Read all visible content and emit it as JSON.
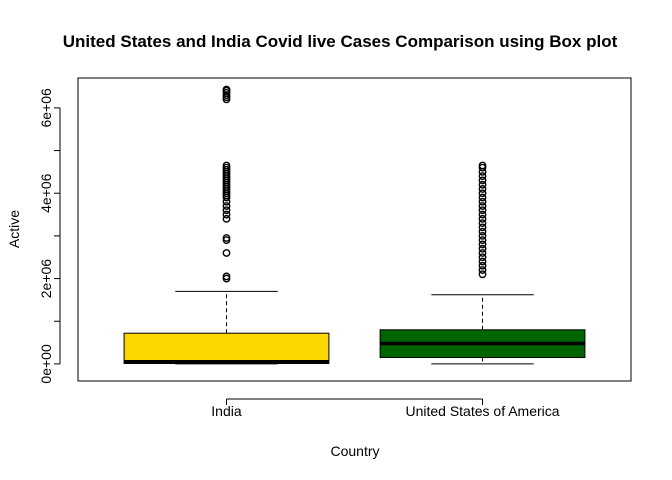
{
  "chart_data": {
    "type": "box",
    "title": "United States and India Covid live Cases Comparison using Box plot",
    "xlabel": "Country",
    "ylabel": "Active",
    "ylim": [
      -400000,
      6700000
    ],
    "yticks": [
      {
        "value": 0,
        "label": "0e+00"
      },
      {
        "value": 2000000,
        "label": "2e+06"
      },
      {
        "value": 4000000,
        "label": "4e+06"
      },
      {
        "value": 6000000,
        "label": "6e+06"
      }
    ],
    "grid": false,
    "legend": "none",
    "categories": [
      "India",
      "United States of America"
    ],
    "boxes": [
      {
        "name": "India",
        "color": "#FFD700",
        "whisker_low": 0,
        "q1": 10000,
        "median": 50000,
        "q3": 720000,
        "whisker_high": 1700000,
        "outliers": [
          2000000,
          2050000,
          2600000,
          2900000,
          2950000,
          3400000,
          3500000,
          3600000,
          3700000,
          3800000,
          3900000,
          3950000,
          4000000,
          4050000,
          4100000,
          4150000,
          4200000,
          4250000,
          4300000,
          4350000,
          4400000,
          4450000,
          4500000,
          4550000,
          4600000,
          4650000,
          6200000,
          6250000,
          6300000,
          6350000,
          6400000,
          6430000
        ]
      },
      {
        "name": "United States of America",
        "color": "#006400",
        "whisker_low": 0,
        "q1": 150000,
        "median": 480000,
        "q3": 800000,
        "whisker_high": 1620000,
        "outliers": [
          2100000,
          2200000,
          2300000,
          2400000,
          2500000,
          2600000,
          2700000,
          2800000,
          2900000,
          3000000,
          3100000,
          3200000,
          3300000,
          3400000,
          3500000,
          3600000,
          3700000,
          3800000,
          3900000,
          4000000,
          4100000,
          4200000,
          4300000,
          4400000,
          4500000,
          4600000,
          4650000
        ]
      }
    ]
  }
}
